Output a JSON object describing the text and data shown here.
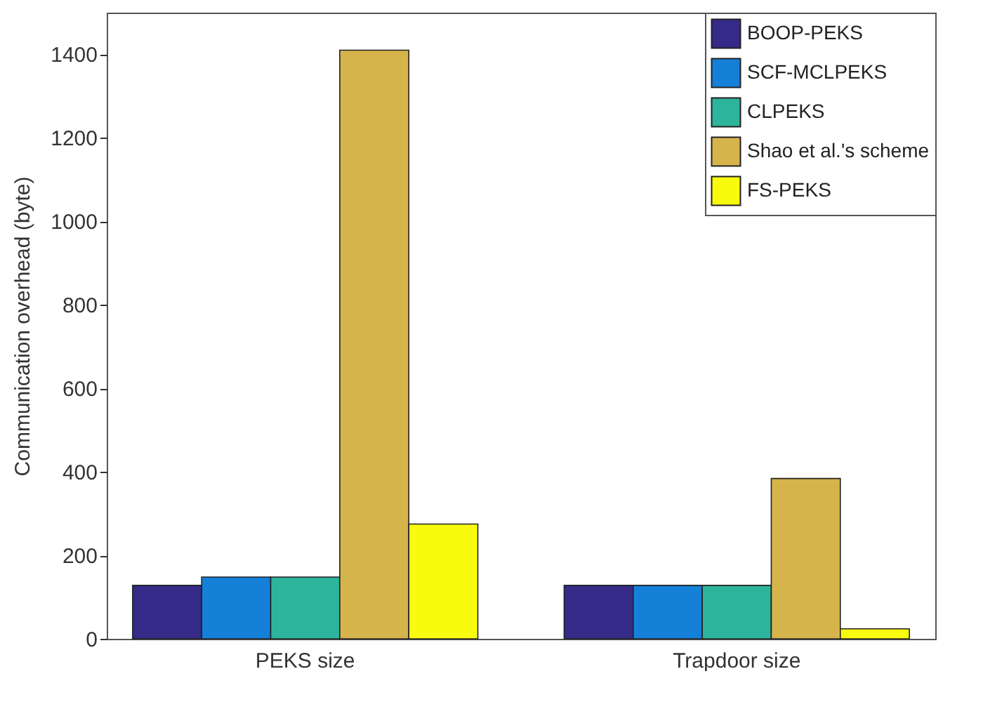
{
  "chart_data": {
    "type": "bar",
    "ylabel": "Communication overhead (byte)",
    "categories": [
      "PEKS size",
      "Trapdoor size"
    ],
    "series": [
      {
        "name": "BOOP-PEKS",
        "color": "#352a87",
        "values": [
          128,
          128
        ]
      },
      {
        "name": "SCF-MCLPEKS",
        "color": "#1580d8",
        "values": [
          148,
          128
        ]
      },
      {
        "name": "CLPEKS",
        "color": "#2db59c",
        "values": [
          148,
          128
        ]
      },
      {
        "name": "Shao et al.'s scheme",
        "color": "#d6b44c",
        "values": [
          1410,
          384
        ]
      },
      {
        "name": "FS-PEKS",
        "color": "#f9fb0e",
        "values": [
          275,
          24
        ]
      }
    ],
    "ylim": [
      0,
      1500
    ],
    "yticks": [
      0,
      200,
      400,
      600,
      800,
      1000,
      1200,
      1400
    ],
    "grid": false,
    "legend": "top right"
  }
}
